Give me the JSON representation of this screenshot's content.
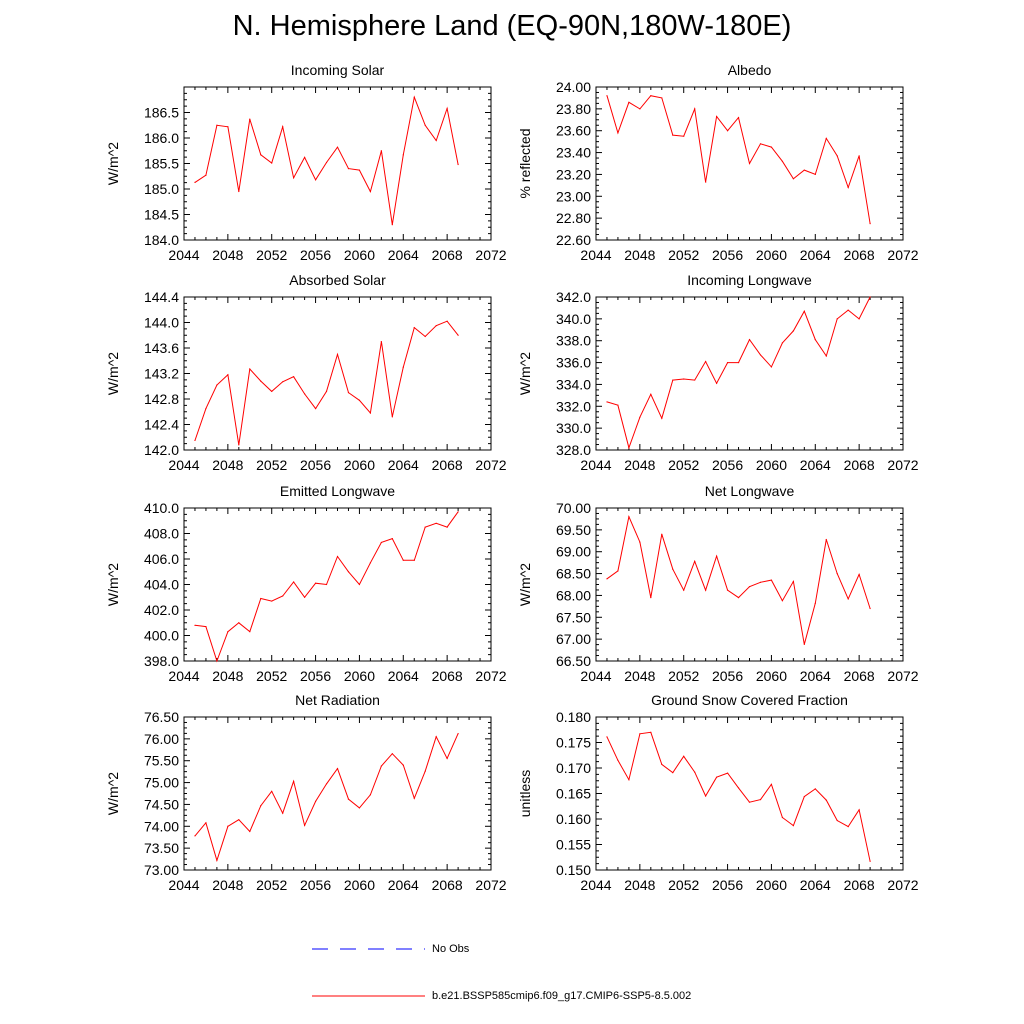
{
  "title": "N. Hemisphere Land (EQ-90N,180W-180E)",
  "colors": {
    "model_line": "#ff0000",
    "obs_line": "#0000ff",
    "frame": "#000000"
  },
  "legend": [
    {
      "label": "No Obs",
      "style": "dashed",
      "color": "#0000ff"
    },
    {
      "label": "b.e21.BSSP585cmip6.f09_g17.CMIP6-SSP5-8.5.002",
      "style": "solid",
      "color": "#ff0000"
    }
  ],
  "chart_data": [
    {
      "type": "line",
      "title": "Incoming Solar",
      "ylabel": "W/m^2",
      "xlim": [
        2044,
        2072
      ],
      "ylim": [
        184.0,
        187.0
      ],
      "xticks": [
        "2044",
        "2048",
        "2052",
        "2056",
        "2060",
        "2064",
        "2068",
        "2072"
      ],
      "yticks": [
        "184.0",
        "184.5",
        "185.0",
        "185.5",
        "186.0",
        "186.5"
      ],
      "x": [
        2045,
        2046,
        2047,
        2048,
        2049,
        2050,
        2051,
        2052,
        2053,
        2054,
        2055,
        2056,
        2057,
        2058,
        2059,
        2060,
        2061,
        2062,
        2063,
        2064,
        2065,
        2066,
        2067,
        2068,
        2069
      ],
      "y": [
        185.13,
        185.27,
        186.25,
        186.22,
        184.95,
        186.37,
        185.67,
        185.51,
        186.22,
        185.22,
        185.62,
        185.18,
        185.52,
        185.82,
        185.4,
        185.37,
        184.95,
        185.75,
        184.3,
        185.67,
        186.8,
        186.25,
        185.95,
        186.58,
        185.48
      ]
    },
    {
      "type": "line",
      "title": "Albedo",
      "ylabel": "% reflected",
      "xlim": [
        2044,
        2072
      ],
      "ylim": [
        22.6,
        24.0
      ],
      "xticks": [
        "2044",
        "2048",
        "2052",
        "2056",
        "2060",
        "2064",
        "2068",
        "2072"
      ],
      "yticks": [
        "22.60",
        "22.80",
        "23.00",
        "23.20",
        "23.40",
        "23.60",
        "23.80",
        "24.00"
      ],
      "x": [
        2045,
        2046,
        2047,
        2048,
        2049,
        2050,
        2051,
        2052,
        2053,
        2054,
        2055,
        2056,
        2057,
        2058,
        2059,
        2060,
        2061,
        2062,
        2063,
        2064,
        2065,
        2066,
        2067,
        2068,
        2069
      ],
      "y": [
        23.92,
        23.58,
        23.86,
        23.8,
        23.92,
        23.9,
        23.56,
        23.55,
        23.8,
        23.13,
        23.73,
        23.6,
        23.72,
        23.3,
        23.48,
        23.45,
        23.32,
        23.16,
        23.24,
        23.2,
        23.53,
        23.37,
        23.08,
        23.37,
        22.75
      ]
    },
    {
      "type": "line",
      "title": "Absorbed Solar",
      "ylabel": "W/m^2",
      "xlim": [
        2044,
        2072
      ],
      "ylim": [
        142.0,
        144.4
      ],
      "xticks": [
        "2044",
        "2048",
        "2052",
        "2056",
        "2060",
        "2064",
        "2068",
        "2072"
      ],
      "yticks": [
        "142.0",
        "142.4",
        "142.8",
        "143.2",
        "143.6",
        "144.0",
        "144.4"
      ],
      "x": [
        2045,
        2046,
        2047,
        2048,
        2049,
        2050,
        2051,
        2052,
        2053,
        2054,
        2055,
        2056,
        2057,
        2058,
        2059,
        2060,
        2061,
        2062,
        2063,
        2064,
        2065,
        2066,
        2067,
        2068,
        2069
      ],
      "y": [
        142.15,
        142.65,
        143.02,
        143.18,
        142.08,
        143.27,
        143.08,
        142.92,
        143.07,
        143.15,
        142.88,
        142.65,
        142.92,
        143.5,
        142.9,
        142.78,
        142.58,
        143.7,
        142.52,
        143.3,
        143.92,
        143.78,
        143.95,
        144.02,
        143.8
      ]
    },
    {
      "type": "line",
      "title": "Incoming Longwave",
      "ylabel": "W/m^2",
      "xlim": [
        2044,
        2072
      ],
      "ylim": [
        328.0,
        342.0
      ],
      "xticks": [
        "2044",
        "2048",
        "2052",
        "2056",
        "2060",
        "2064",
        "2068",
        "2072"
      ],
      "yticks": [
        "328.0",
        "330.0",
        "332.0",
        "334.0",
        "336.0",
        "338.0",
        "340.0",
        "342.0"
      ],
      "x": [
        2045,
        2046,
        2047,
        2048,
        2049,
        2050,
        2051,
        2052,
        2053,
        2054,
        2055,
        2056,
        2057,
        2058,
        2059,
        2060,
        2061,
        2062,
        2063,
        2064,
        2065,
        2066,
        2067,
        2068,
        2069
      ],
      "y": [
        332.4,
        332.1,
        328.2,
        331.0,
        333.1,
        330.9,
        334.4,
        334.5,
        334.4,
        336.1,
        334.1,
        336.0,
        336.0,
        338.1,
        336.7,
        335.6,
        337.8,
        338.9,
        340.7,
        338.1,
        336.6,
        340.0,
        340.8,
        340.0,
        342.0
      ]
    },
    {
      "type": "line",
      "title": "Emitted Longwave",
      "ylabel": "W/m^2",
      "xlim": [
        2044,
        2072
      ],
      "ylim": [
        398.0,
        410.0
      ],
      "xticks": [
        "2044",
        "2048",
        "2052",
        "2056",
        "2060",
        "2064",
        "2068",
        "2072"
      ],
      "yticks": [
        "398.0",
        "400.0",
        "402.0",
        "404.0",
        "406.0",
        "408.0",
        "410.0"
      ],
      "x": [
        2045,
        2046,
        2047,
        2048,
        2049,
        2050,
        2051,
        2052,
        2053,
        2054,
        2055,
        2056,
        2057,
        2058,
        2059,
        2060,
        2061,
        2062,
        2063,
        2064,
        2065,
        2066,
        2067,
        2068,
        2069
      ],
      "y": [
        400.8,
        400.7,
        398.0,
        400.3,
        401.0,
        400.3,
        402.9,
        402.7,
        403.1,
        404.2,
        403.0,
        404.1,
        404.0,
        406.2,
        405.0,
        404.0,
        405.7,
        407.3,
        407.6,
        405.9,
        405.9,
        408.5,
        408.8,
        408.5,
        409.7
      ]
    },
    {
      "type": "line",
      "title": "Net Longwave",
      "ylabel": "W/m^2",
      "xlim": [
        2044,
        2072
      ],
      "ylim": [
        66.5,
        70.0
      ],
      "xticks": [
        "2044",
        "2048",
        "2052",
        "2056",
        "2060",
        "2064",
        "2068",
        "2072"
      ],
      "yticks": [
        "66.50",
        "67.00",
        "67.50",
        "68.00",
        "68.50",
        "69.00",
        "69.50",
        "70.00"
      ],
      "x": [
        2045,
        2046,
        2047,
        2048,
        2049,
        2050,
        2051,
        2052,
        2053,
        2054,
        2055,
        2056,
        2057,
        2058,
        2059,
        2060,
        2061,
        2062,
        2063,
        2064,
        2065,
        2066,
        2067,
        2068,
        2069
      ],
      "y": [
        68.38,
        68.56,
        69.8,
        69.22,
        67.95,
        69.4,
        68.6,
        68.12,
        68.78,
        68.12,
        68.9,
        68.12,
        67.95,
        68.2,
        68.3,
        68.35,
        67.88,
        68.32,
        66.88,
        67.82,
        69.28,
        68.5,
        67.92,
        68.48,
        67.7
      ]
    },
    {
      "type": "line",
      "title": "Net Radiation",
      "ylabel": "W/m^2",
      "xlim": [
        2044,
        2072
      ],
      "ylim": [
        73.0,
        76.5
      ],
      "xticks": [
        "2044",
        "2048",
        "2052",
        "2056",
        "2060",
        "2064",
        "2068",
        "2072"
      ],
      "yticks": [
        "73.00",
        "73.50",
        "74.00",
        "74.50",
        "75.00",
        "75.50",
        "76.00",
        "76.50"
      ],
      "x": [
        2045,
        2046,
        2047,
        2048,
        2049,
        2050,
        2051,
        2052,
        2053,
        2054,
        2055,
        2056,
        2057,
        2058,
        2059,
        2060,
        2061,
        2062,
        2063,
        2064,
        2065,
        2066,
        2067,
        2068,
        2069
      ],
      "y": [
        73.78,
        74.08,
        73.22,
        74.0,
        74.15,
        73.88,
        74.47,
        74.8,
        74.3,
        75.03,
        74.02,
        74.57,
        74.97,
        75.32,
        74.62,
        74.42,
        74.72,
        75.38,
        75.66,
        75.4,
        74.64,
        75.26,
        76.05,
        75.55,
        76.12
      ]
    },
    {
      "type": "line",
      "title": "Ground Snow Covered Fraction",
      "ylabel": "unitless",
      "xlim": [
        2044,
        2072
      ],
      "ylim": [
        0.15,
        0.18
      ],
      "xticks": [
        "2044",
        "2048",
        "2052",
        "2056",
        "2060",
        "2064",
        "2068",
        "2072"
      ],
      "yticks": [
        "0.150",
        "0.155",
        "0.160",
        "0.165",
        "0.170",
        "0.175",
        "0.180"
      ],
      "x": [
        2045,
        2046,
        2047,
        2048,
        2049,
        2050,
        2051,
        2052,
        2053,
        2054,
        2055,
        2056,
        2057,
        2058,
        2059,
        2060,
        2061,
        2062,
        2063,
        2064,
        2065,
        2066,
        2067,
        2068,
        2069
      ],
      "y": [
        0.1761,
        0.1715,
        0.1677,
        0.1767,
        0.177,
        0.1707,
        0.1691,
        0.1723,
        0.1692,
        0.1645,
        0.1682,
        0.169,
        0.1661,
        0.1633,
        0.1638,
        0.1668,
        0.1603,
        0.1587,
        0.1644,
        0.1659,
        0.1637,
        0.1597,
        0.1585,
        0.1618,
        0.1517
      ]
    }
  ]
}
